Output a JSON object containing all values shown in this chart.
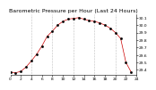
{
  "title": "Barometric Pressure per Hour (Last 24 Hours)",
  "background_color": "#ffffff",
  "grid_color": "#888888",
  "line_color": "#cc0000",
  "dot_color": "#000000",
  "ylim": [
    29.33,
    30.15
  ],
  "xlim": [
    0,
    24
  ],
  "yticks": [
    29.4,
    29.5,
    29.6,
    29.7,
    29.8,
    29.9,
    30.0,
    30.1
  ],
  "ytick_labels": [
    "29.4",
    "29.5",
    "29.6",
    "29.7",
    "29.8",
    "29.9",
    "30.0",
    "30.1"
  ],
  "xtick_positions": [
    0,
    2,
    4,
    6,
    8,
    10,
    12,
    14,
    16,
    18,
    20,
    22,
    24
  ],
  "xtick_labels": [
    "0",
    "2",
    "4",
    "6",
    "8",
    "10",
    "12",
    "14",
    "16",
    "18",
    "20",
    "22",
    "24"
  ],
  "hours": [
    0,
    1,
    2,
    3,
    4,
    5,
    6,
    7,
    8,
    9,
    10,
    11,
    12,
    13,
    14,
    15,
    16,
    17,
    18,
    19,
    20,
    21,
    22,
    23
  ],
  "pressure": [
    29.37,
    29.36,
    29.38,
    29.44,
    29.52,
    29.61,
    29.72,
    29.85,
    29.92,
    30.0,
    30.05,
    30.08,
    30.09,
    30.1,
    30.08,
    30.06,
    30.05,
    30.03,
    30.0,
    29.96,
    29.9,
    29.82,
    29.5,
    29.37
  ],
  "vgrid_positions": [
    4,
    8,
    12,
    16,
    20
  ],
  "title_fontsize": 4.5,
  "tick_fontsize": 3.2,
  "line_width": 0.5,
  "marker_size": 0.9,
  "marker_style": "s"
}
